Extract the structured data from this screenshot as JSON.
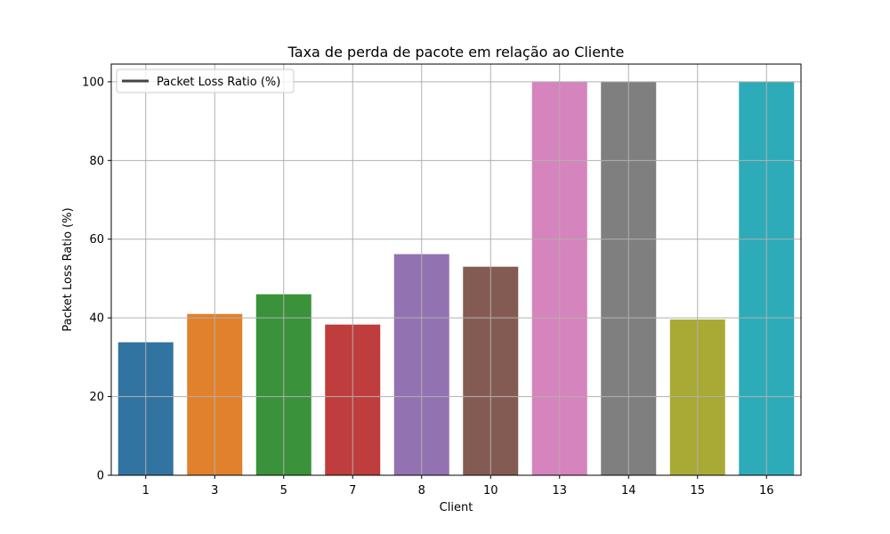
{
  "chart_data": {
    "type": "bar",
    "title": "Taxa de perda de pacote em relação ao Cliente",
    "xlabel": "Client",
    "ylabel": "Packet Loss Ratio (%)",
    "categories": [
      "1",
      "3",
      "5",
      "7",
      "8",
      "10",
      "13",
      "14",
      "15",
      "16"
    ],
    "series": [
      {
        "name": "Packet Loss Ratio (%)",
        "values": [
          33.8,
          41.0,
          46.0,
          38.3,
          56.2,
          53.0,
          100.0,
          100.0,
          39.6,
          100.0
        ]
      }
    ],
    "colors": [
      "#3274a1",
      "#e1812c",
      "#3a923a",
      "#c03d3e",
      "#9372b2",
      "#845b53",
      "#d684bd",
      "#7f7f7f",
      "#a9aa35",
      "#2eabb8"
    ],
    "legend_line_color": "#444444",
    "ylim": [
      0,
      104.5
    ],
    "yticks": [
      0,
      20,
      40,
      60,
      80,
      100
    ],
    "grid": true,
    "legend_position": "top-left"
  }
}
